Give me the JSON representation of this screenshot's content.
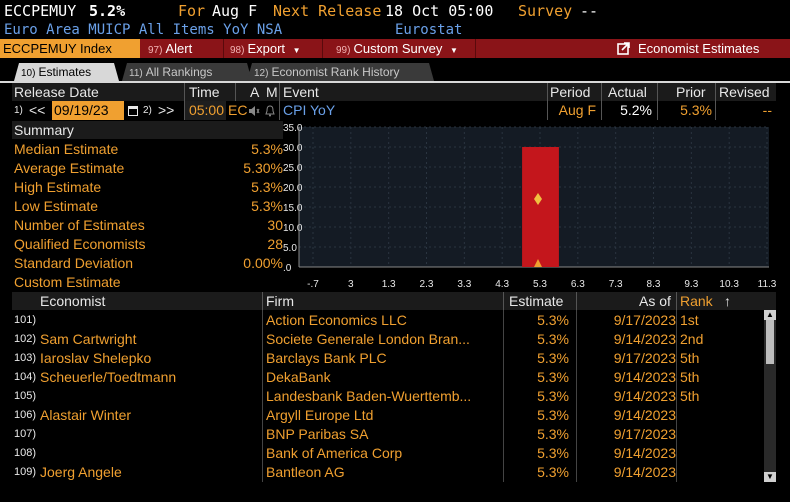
{
  "title": {
    "ticker": "ECCPEMUY",
    "value": "5.2%",
    "for_label": "For",
    "period": "Aug F",
    "next_release_label": "Next Release",
    "next_release": "18 Oct 05:00",
    "survey_label": "Survey",
    "survey_value": "--",
    "description": "Euro Area MUICP All Items YoY NSA",
    "source": "Eurostat"
  },
  "toolbar": {
    "ticker_field": "ECCPEMUY Index",
    "alert": {
      "num": "97)",
      "label": "Alert"
    },
    "export": {
      "num": "98)",
      "label": "Export"
    },
    "custom": {
      "num": "99)",
      "label": "Custom Survey"
    },
    "economist": "Economist Estimates"
  },
  "tabs": [
    {
      "num": "10)",
      "label": "Estimates"
    },
    {
      "num": "11)",
      "label": "All Rankings"
    },
    {
      "num": "12)",
      "label": "Economist Rank History"
    }
  ],
  "release": {
    "headers": {
      "release_date": "Release Date",
      "time": "Time",
      "a": "A",
      "m": "M",
      "event": "Event",
      "period": "Period",
      "actual": "Actual",
      "prior": "Prior",
      "revised": "Revised"
    },
    "prev_num": "1)",
    "next_num": "2)",
    "date": "09/19/23",
    "time": "05:00",
    "country": "EC",
    "event": "CPI YoY",
    "period": "Aug F",
    "actual": "5.2%",
    "prior": "5.3%",
    "revised": "--"
  },
  "summary": {
    "header": "Summary",
    "rows": [
      {
        "label": "Median Estimate",
        "value": "5.3%"
      },
      {
        "label": "Average Estimate",
        "value": "5.30%"
      },
      {
        "label": "High Estimate",
        "value": "5.3%"
      },
      {
        "label": "Low Estimate",
        "value": "5.3%"
      },
      {
        "label": "Number of Estimates",
        "value": "30"
      },
      {
        "label": "Qualified Economists",
        "value": "28"
      },
      {
        "label": "Standard Deviation",
        "value": "0.00%"
      },
      {
        "label": "Custom Estimate",
        "value": ""
      }
    ]
  },
  "chart_data": {
    "type": "bar",
    "yticks": [
      "35.0",
      "30.0",
      "25.0",
      "20.0",
      "15.0",
      "10.0",
      "5.0",
      ".0"
    ],
    "xticks": [
      "-.7",
      "3",
      "1.3",
      "2.3",
      "3.3",
      "4.3",
      "5.3",
      "6.3",
      "7.3",
      "8.3",
      "9.3",
      "10.3",
      "11.3"
    ],
    "ylim": [
      0,
      35
    ],
    "bar": {
      "center_index": 6,
      "value": 30
    },
    "average_marker": 5.3,
    "bar_color": "#c4161c",
    "marker_color": "#f0c040"
  },
  "economists": {
    "headers": {
      "economist": "Economist",
      "firm": "Firm",
      "estimate": "Estimate",
      "asof": "As of",
      "rank": "Rank"
    },
    "rows": [
      {
        "idx": "101)",
        "name": "",
        "firm": "Action Economics LLC",
        "est": "5.3%",
        "asof": "9/17/2023",
        "rank": "1st"
      },
      {
        "idx": "102)",
        "name": "Sam Cartwright",
        "firm": "Societe Generale London Bran...",
        "est": "5.3%",
        "asof": "9/14/2023",
        "rank": "2nd"
      },
      {
        "idx": "103)",
        "name": "Iaroslav Shelepko",
        "firm": "Barclays Bank PLC",
        "est": "5.3%",
        "asof": "9/17/2023",
        "rank": "5th"
      },
      {
        "idx": "104)",
        "name": "Scheuerle/Toedtmann",
        "firm": "DekaBank",
        "est": "5.3%",
        "asof": "9/14/2023",
        "rank": "5th"
      },
      {
        "idx": "105)",
        "name": "",
        "firm": "Landesbank Baden-Wuerttemb...",
        "est": "5.3%",
        "asof": "9/14/2023",
        "rank": "5th"
      },
      {
        "idx": "106)",
        "name": "Alastair Winter",
        "firm": "Argyll Europe Ltd",
        "est": "5.3%",
        "asof": "9/14/2023",
        "rank": ""
      },
      {
        "idx": "107)",
        "name": "",
        "firm": "BNP Paribas SA",
        "est": "5.3%",
        "asof": "9/17/2023",
        "rank": ""
      },
      {
        "idx": "108)",
        "name": "",
        "firm": "Bank of America Corp",
        "est": "5.3%",
        "asof": "9/14/2023",
        "rank": ""
      },
      {
        "idx": "109)",
        "name": "Joerg Angele",
        "firm": "Bantleon AG",
        "est": "5.3%",
        "asof": "9/14/2023",
        "rank": ""
      }
    ]
  }
}
